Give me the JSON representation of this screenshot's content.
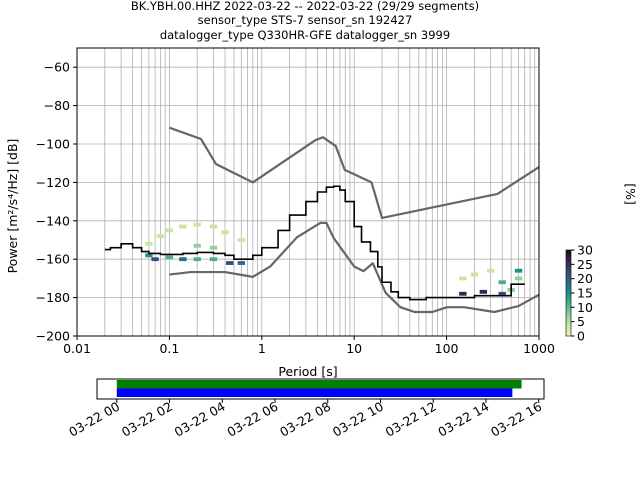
{
  "title_lines": [
    "BK.YBH.00.HHZ   2022-03-22 -- 2022-03-22  (29/29 segments)",
    "sensor_type STS-7 sensor_sn 192427",
    "datalogger_type Q330HR-GFE datalogger_sn 3999"
  ],
  "chart_data": [
    {
      "type": "heatmap",
      "xlabel": "Period [s]",
      "ylabel": "Power [m²/s⁴/Hz] [dB]",
      "x_scale": "log",
      "xlim": [
        0.01,
        1000
      ],
      "ylim": [
        -200,
        -50
      ],
      "x_ticks": [
        {
          "v": 0.01,
          "label": "0.01"
        },
        {
          "v": 0.1,
          "label": "0.1"
        },
        {
          "v": 1,
          "label": "1"
        },
        {
          "v": 10,
          "label": "10"
        },
        {
          "v": 100,
          "label": "100"
        },
        {
          "v": 1000,
          "label": "1000"
        }
      ],
      "y_ticks": [
        {
          "v": -60,
          "label": "−60"
        },
        {
          "v": -80,
          "label": "−80"
        },
        {
          "v": -100,
          "label": "−100"
        },
        {
          "v": -120,
          "label": "−120"
        },
        {
          "v": -140,
          "label": "−140"
        },
        {
          "v": -160,
          "label": "−160"
        },
        {
          "v": -180,
          "label": "−180"
        },
        {
          "v": -200,
          "label": "−200"
        }
      ],
      "grid": true,
      "colorbar": {
        "label": "[%]",
        "range": [
          0,
          30
        ],
        "ticks": [
          {
            "v": 0,
            "label": "0"
          },
          {
            "v": 5,
            "label": "5"
          },
          {
            "v": 10,
            "label": "10"
          },
          {
            "v": 15,
            "label": "15"
          },
          {
            "v": 20,
            "label": "20"
          },
          {
            "v": 25,
            "label": "25"
          },
          {
            "v": 30,
            "label": "30"
          }
        ],
        "colors": [
          "#f2f2bd",
          "#c9e5a0",
          "#8fd19a",
          "#46b488",
          "#1f9183",
          "#2a6e86",
          "#3a4a7d",
          "#3a2452",
          "#1d0b1f"
        ]
      },
      "noise_models": {
        "color": "#666666",
        "high": {
          "x": [
            0.1,
            0.22,
            0.32,
            0.8,
            3.8,
            4.6,
            6.3,
            7.9,
            15.4,
            20,
            354.8,
            1000
          ],
          "y": [
            -91.5,
            -97.4,
            -110.5,
            -120,
            -98,
            -96.5,
            -101,
            -113.5,
            -120,
            -138.5,
            -126,
            -112
          ]
        },
        "low": {
          "x": [
            0.1,
            0.17,
            0.4,
            0.8,
            1.24,
            2.4,
            4.3,
            5,
            6,
            10,
            12.6,
            15.9,
            21.9,
            31.6,
            45,
            70,
            101,
            154,
            328,
            600,
            1000
          ],
          "y": [
            -168,
            -166.7,
            -166.7,
            -169.2,
            -163.7,
            -148.6,
            -141.1,
            -141.1,
            -149,
            -163.8,
            -166.2,
            -162.1,
            -177.5,
            -185,
            -187.5,
            -187.5,
            -185,
            -185,
            -187.5,
            -184.4,
            -178.5
          ]
        }
      },
      "median": {
        "color": "#000000",
        "x": [
          0.02,
          0.023,
          0.027,
          0.03,
          0.033,
          0.04,
          0.05,
          0.06,
          0.07,
          0.08,
          0.1,
          0.14,
          0.2,
          0.3,
          0.4,
          0.5,
          0.6,
          0.8,
          1.0,
          1.5,
          2,
          3,
          4,
          5,
          6,
          7,
          8,
          10,
          12,
          15,
          18,
          20,
          25,
          30,
          40,
          50,
          60,
          70,
          100,
          200,
          300,
          400,
          500,
          600,
          700
        ],
        "y": [
          -155,
          -154,
          -154,
          -152,
          -152,
          -154,
          -156,
          -157,
          -157,
          -157.5,
          -157.5,
          -157,
          -156.5,
          -157,
          -158,
          -160,
          -160,
          -158,
          -154,
          -145,
          -137,
          -130,
          -125,
          -122.5,
          -122,
          -124,
          -130,
          -143,
          -151,
          -156,
          -164,
          -172,
          -177,
          -180,
          -181,
          -181,
          -180,
          -180,
          -180,
          -179,
          -179,
          -179,
          -173,
          -173,
          -173
        ]
      },
      "pdf_cells": [
        {
          "x": 0.06,
          "y": -152,
          "pct": 2
        },
        {
          "x": 0.08,
          "y": -148,
          "pct": 2
        },
        {
          "x": 0.1,
          "y": -145,
          "pct": 2
        },
        {
          "x": 0.14,
          "y": -143,
          "pct": 3
        },
        {
          "x": 0.2,
          "y": -142,
          "pct": 3
        },
        {
          "x": 0.3,
          "y": -143,
          "pct": 3
        },
        {
          "x": 0.4,
          "y": -146,
          "pct": 2
        },
        {
          "x": 0.6,
          "y": -150,
          "pct": 2
        },
        {
          "x": 0.06,
          "y": -158,
          "pct": 14
        },
        {
          "x": 0.07,
          "y": -160,
          "pct": 22
        },
        {
          "x": 0.1,
          "y": -159,
          "pct": 12
        },
        {
          "x": 0.14,
          "y": -160,
          "pct": 18
        },
        {
          "x": 0.2,
          "y": -153,
          "pct": 8
        },
        {
          "x": 0.2,
          "y": -160,
          "pct": 12
        },
        {
          "x": 0.3,
          "y": -154,
          "pct": 9
        },
        {
          "x": 0.3,
          "y": -160,
          "pct": 13
        },
        {
          "x": 0.45,
          "y": -162,
          "pct": 24
        },
        {
          "x": 0.6,
          "y": -162,
          "pct": 18
        },
        {
          "x": 150,
          "y": -170,
          "pct": 3
        },
        {
          "x": 200,
          "y": -168,
          "pct": 3
        },
        {
          "x": 300,
          "y": -166,
          "pct": 4
        },
        {
          "x": 400,
          "y": -172,
          "pct": 10
        },
        {
          "x": 500,
          "y": -176,
          "pct": 8
        },
        {
          "x": 600,
          "y": -166,
          "pct": 14
        },
        {
          "x": 600,
          "y": -170,
          "pct": 6
        },
        {
          "x": 150,
          "y": -178,
          "pct": 26
        },
        {
          "x": 250,
          "y": -177,
          "pct": 25
        },
        {
          "x": 400,
          "y": -178,
          "pct": 22
        }
      ]
    },
    {
      "type": "bar",
      "orientation": "horizontal",
      "x_ticks": [
        "03-22 00",
        "03-22 02",
        "03-22 04",
        "03-22 06",
        "03-22 08",
        "03-22 10",
        "03-22 12",
        "03-22 14",
        "03-22 16"
      ],
      "xlim_hours": [
        -0.75,
        16.2
      ],
      "series": [
        {
          "color": "#008000",
          "start_hour": 0,
          "end_hour": 15.35
        },
        {
          "color": "#0000ff",
          "start_hour": 0,
          "end_hour": 15.0
        }
      ]
    }
  ]
}
